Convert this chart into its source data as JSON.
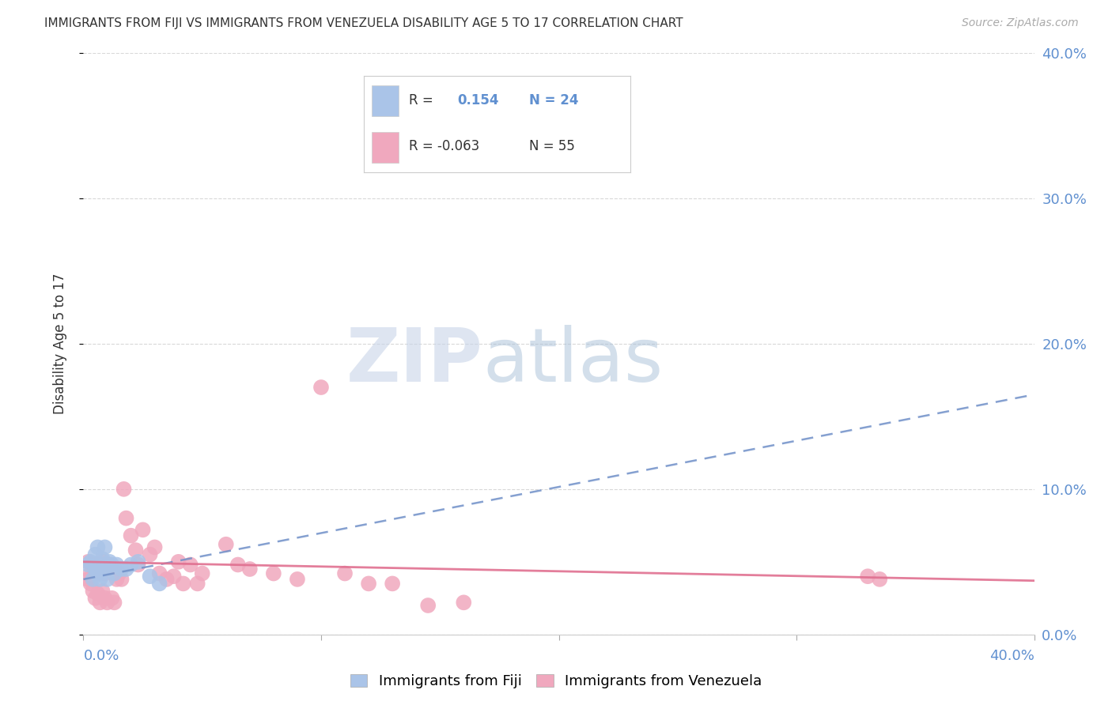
{
  "title": "IMMIGRANTS FROM FIJI VS IMMIGRANTS FROM VENEZUELA DISABILITY AGE 5 TO 17 CORRELATION CHART",
  "source": "Source: ZipAtlas.com",
  "ylabel": "Disability Age 5 to 17",
  "legend_fiji": "Immigrants from Fiji",
  "legend_venezuela": "Immigrants from Venezuela",
  "fiji_color": "#aac4e8",
  "venezuela_color": "#f0a8be",
  "fiji_line_color": "#7090c8",
  "venezuela_line_color": "#e07090",
  "axis_label_color": "#6090d0",
  "text_color": "#333333",
  "source_color": "#aaaaaa",
  "xlim": [
    0.0,
    0.4
  ],
  "ylim": [
    0.0,
    0.4
  ],
  "yticks": [
    0.0,
    0.1,
    0.2,
    0.3,
    0.4
  ],
  "xticks": [
    0.0,
    0.1,
    0.2,
    0.3,
    0.4
  ],
  "ytick_labels_right": [
    "0.0%",
    "10.0%",
    "20.0%",
    "30.0%",
    "40.0%"
  ],
  "grid_color": "#d8d8d8",
  "fiji_x": [
    0.002,
    0.003,
    0.004,
    0.005,
    0.005,
    0.006,
    0.006,
    0.007,
    0.007,
    0.008,
    0.008,
    0.009,
    0.01,
    0.01,
    0.011,
    0.012,
    0.013,
    0.014,
    0.016,
    0.018,
    0.02,
    0.023,
    0.028,
    0.032
  ],
  "fiji_y": [
    0.048,
    0.05,
    0.038,
    0.045,
    0.055,
    0.042,
    0.06,
    0.048,
    0.038,
    0.052,
    0.045,
    0.06,
    0.048,
    0.038,
    0.05,
    0.048,
    0.042,
    0.048,
    0.045,
    0.045,
    0.048,
    0.05,
    0.04,
    0.035
  ],
  "venezuela_x": [
    0.002,
    0.002,
    0.003,
    0.003,
    0.004,
    0.004,
    0.005,
    0.005,
    0.006,
    0.006,
    0.007,
    0.007,
    0.008,
    0.008,
    0.009,
    0.009,
    0.01,
    0.01,
    0.011,
    0.012,
    0.012,
    0.013,
    0.013,
    0.014,
    0.015,
    0.016,
    0.017,
    0.018,
    0.02,
    0.022,
    0.023,
    0.025,
    0.028,
    0.03,
    0.032,
    0.035,
    0.038,
    0.04,
    0.042,
    0.045,
    0.048,
    0.05,
    0.06,
    0.065,
    0.07,
    0.08,
    0.09,
    0.1,
    0.11,
    0.12,
    0.13,
    0.145,
    0.16,
    0.33,
    0.335
  ],
  "venezuela_y": [
    0.05,
    0.038,
    0.042,
    0.035,
    0.048,
    0.03,
    0.045,
    0.025,
    0.042,
    0.028,
    0.048,
    0.022,
    0.05,
    0.03,
    0.042,
    0.025,
    0.045,
    0.022,
    0.048,
    0.045,
    0.025,
    0.042,
    0.022,
    0.038,
    0.042,
    0.038,
    0.1,
    0.08,
    0.068,
    0.058,
    0.048,
    0.072,
    0.055,
    0.06,
    0.042,
    0.038,
    0.04,
    0.05,
    0.035,
    0.048,
    0.035,
    0.042,
    0.062,
    0.048,
    0.045,
    0.042,
    0.038,
    0.17,
    0.042,
    0.035,
    0.035,
    0.02,
    0.022,
    0.04,
    0.038
  ],
  "fiji_line_x": [
    0.0,
    0.4
  ],
  "fiji_line_y": [
    0.038,
    0.165
  ],
  "ven_line_x": [
    0.0,
    0.4
  ],
  "ven_line_y": [
    0.05,
    0.037
  ],
  "background_color": "#ffffff"
}
